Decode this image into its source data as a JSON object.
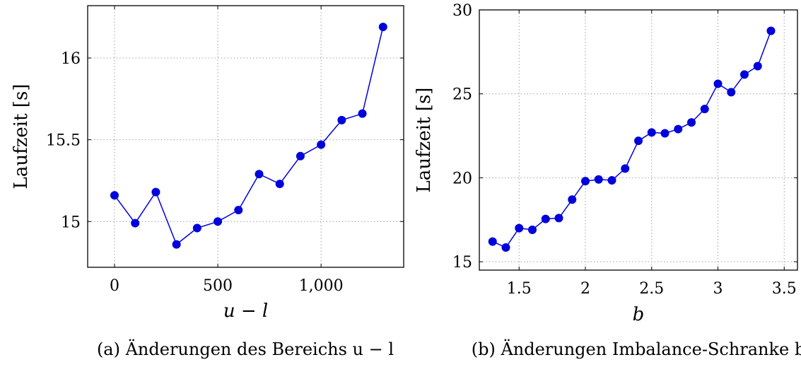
{
  "colors": {
    "series": "#0000dd",
    "grid": "#a0a0a0",
    "axis": "#000000"
  },
  "chart_data": [
    {
      "type": "line",
      "caption": "(a) Änderungen des Bereichs u − l",
      "xlabel": "u − l",
      "ylabel": "Laufzeit [s]",
      "xlim": [
        -130,
        1400
      ],
      "ylim": [
        14.72,
        16.32
      ],
      "xticks": [
        0,
        500,
        1000
      ],
      "xtick_labels": [
        "0",
        "500",
        "1,000"
      ],
      "yticks": [
        15,
        15.5,
        16
      ],
      "ytick_labels": [
        "15",
        "15.5",
        "16"
      ],
      "grid": true,
      "series": [
        {
          "x": [
            0,
            100,
            200,
            300,
            400,
            500,
            600,
            700,
            800,
            900,
            1000,
            1100,
            1200,
            1300
          ],
          "y": [
            15.16,
            14.99,
            15.18,
            14.86,
            14.96,
            15.0,
            15.07,
            15.29,
            15.23,
            15.4,
            15.47,
            15.62,
            15.66,
            16.19
          ]
        }
      ]
    },
    {
      "type": "line",
      "caption": "(b) Änderungen Imbalance-Schranke b",
      "xlabel": "b",
      "ylabel": "Laufzeit [s]",
      "xlim": [
        1.2,
        3.6
      ],
      "ylim": [
        14.5,
        30
      ],
      "xticks": [
        1.5,
        2,
        2.5,
        3,
        3.5
      ],
      "xtick_labels": [
        "1.5",
        "2",
        "2.5",
        "3",
        "3.5"
      ],
      "yticks": [
        15,
        20,
        25,
        30
      ],
      "ytick_labels": [
        "15",
        "20",
        "25",
        "30"
      ],
      "grid": true,
      "series": [
        {
          "x": [
            1.3,
            1.4,
            1.5,
            1.6,
            1.7,
            1.8,
            1.9,
            2.0,
            2.1,
            2.2,
            2.3,
            2.4,
            2.5,
            2.6,
            2.7,
            2.8,
            2.9,
            3.0,
            3.1,
            3.2,
            3.3,
            3.4
          ],
          "y": [
            16.2,
            15.85,
            17.0,
            16.9,
            17.55,
            17.6,
            18.7,
            19.8,
            19.9,
            19.85,
            20.55,
            22.2,
            22.7,
            22.65,
            22.9,
            23.3,
            24.1,
            25.6,
            25.1,
            26.15,
            26.65,
            28.75
          ]
        }
      ]
    }
  ]
}
